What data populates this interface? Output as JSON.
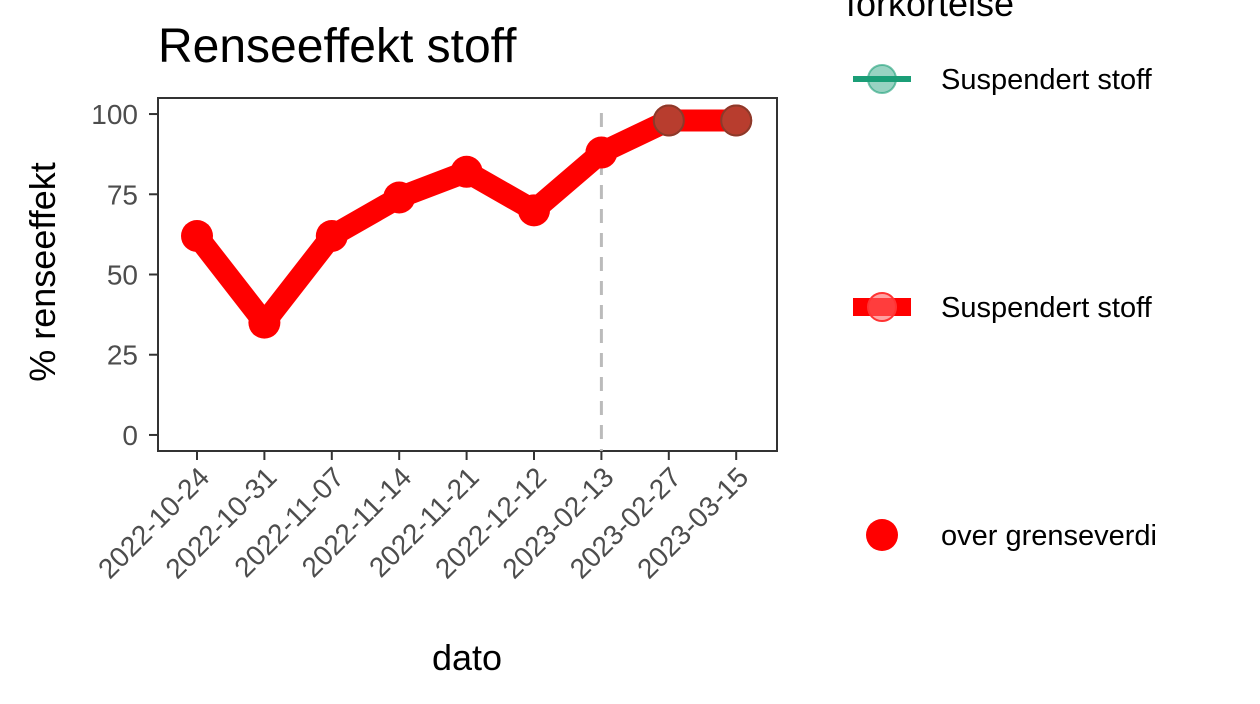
{
  "chart_data": {
    "type": "line",
    "title": "Renseeffekt stoff",
    "xlabel": "dato",
    "ylabel": "% renseeffekt",
    "categories": [
      "2022-10-24",
      "2022-10-31",
      "2022-11-07",
      "2022-11-14",
      "2022-11-21",
      "2022-12-12",
      "2023-02-13",
      "2023-02-27",
      "2023-03-15"
    ],
    "y_ticks": [
      0,
      25,
      50,
      75,
      100
    ],
    "ylim": [
      -5,
      105
    ],
    "grid": false,
    "vline_at": "2023-02-13",
    "series": [
      {
        "name": "Suspendert stoff",
        "color": "#ff0000",
        "values": [
          62,
          35,
          62,
          74,
          82,
          70,
          88,
          98,
          98
        ],
        "over_limit": [
          false,
          false,
          false,
          false,
          false,
          false,
          false,
          true,
          true
        ]
      }
    ],
    "legend": {
      "position": "right",
      "title": "forkortelse",
      "entries": [
        {
          "label": "Suspendert stoff",
          "color": "#1b9e77",
          "kind": "thin-line-point"
        },
        {
          "label": "Suspendert stoff",
          "color": "#ff0000",
          "kind": "thick-line-point"
        },
        {
          "label": "over grenseverdi",
          "color": "#ff0000",
          "kind": "point"
        }
      ]
    }
  }
}
